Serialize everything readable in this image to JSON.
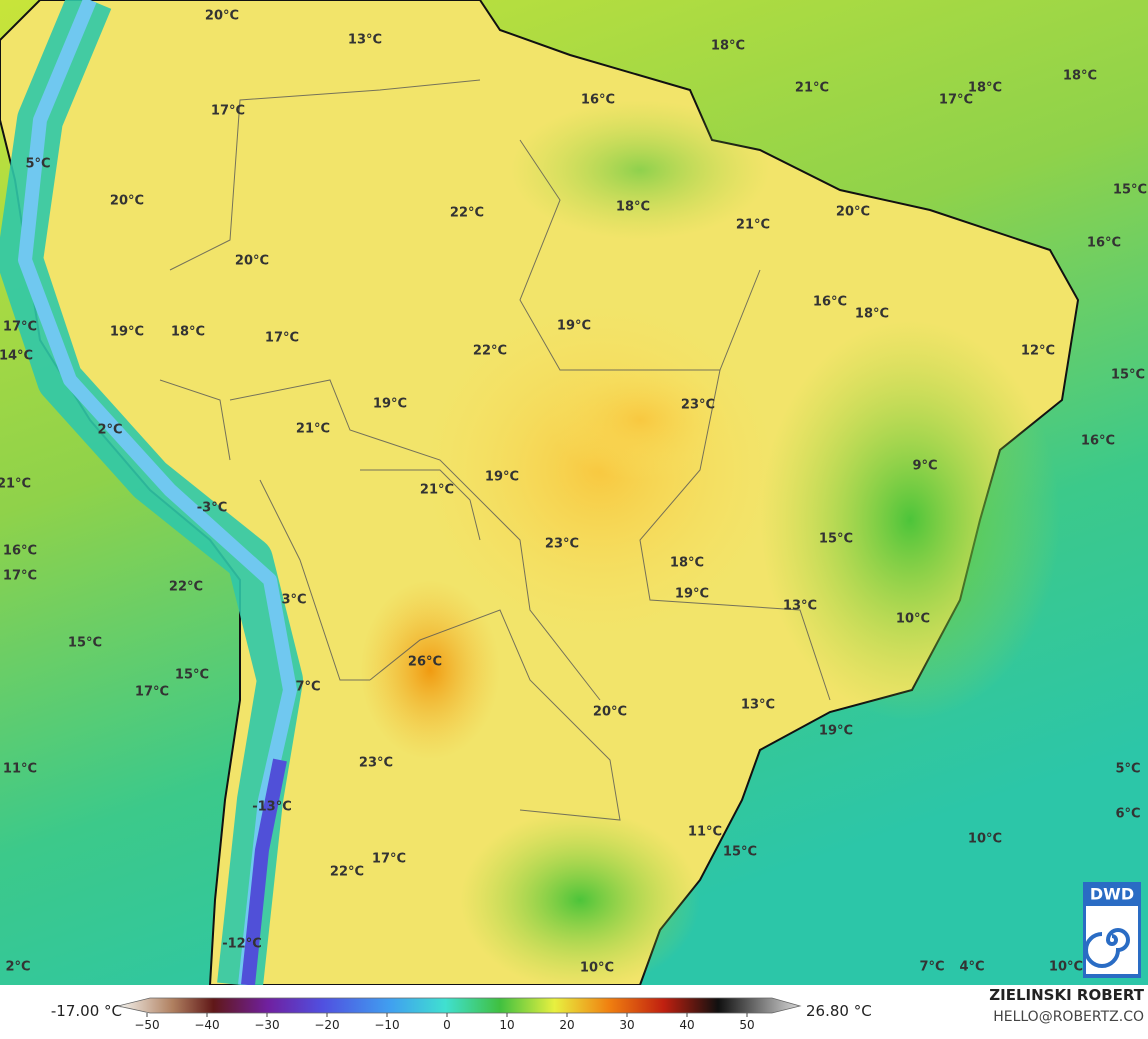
{
  "map_labels": [
    "20°C",
    "13°C",
    "18°C",
    "18°C",
    "21°C",
    "17°C",
    "18°C",
    "16°C",
    "17°C",
    "5°C",
    "20°C",
    "22°C",
    "18°C",
    "21°C",
    "20°C",
    "15°C",
    "16°C",
    "20°C",
    "16°C",
    "18°C",
    "17°C",
    "19°C",
    "18°C",
    "17°C",
    "19°C",
    "22°C",
    "12°C",
    "14°C",
    "15°C",
    "19°C",
    "23°C",
    "21°C",
    "2°C",
    "16°C",
    "9°C",
    "19°C",
    "21°C",
    "21°C",
    "-3°C",
    "15°C",
    "23°C",
    "16°C",
    "17°C",
    "18°C",
    "22°C",
    "19°C",
    "3°C",
    "13°C",
    "10°C",
    "15°C",
    "26°C",
    "15°C",
    "17°C",
    "7°C",
    "13°C",
    "20°C",
    "19°C",
    "23°C",
    "11°C",
    "5°C",
    "-13°C",
    "6°C",
    "11°C",
    "10°C",
    "15°C",
    "17°C",
    "22°C",
    "-12°C",
    "2°C",
    "10°C",
    "7°C",
    "4°C",
    "10°C"
  ],
  "colorbar": {
    "min_label": "-17.00 °C",
    "max_label": "26.80 °C",
    "ticks": [
      {
        "value": -50,
        "label": "−50"
      },
      {
        "value": -40,
        "label": "−40"
      },
      {
        "value": -30,
        "label": "−30"
      },
      {
        "value": -20,
        "label": "−20"
      },
      {
        "value": -10,
        "label": "−10"
      },
      0,
      10,
      20,
      30,
      40,
      50
    ]
  },
  "credits": {
    "name": "ZIELINSKI ROBERT",
    "email": "HELLO@ROBERTZ.CO"
  },
  "logo": "DWD"
}
